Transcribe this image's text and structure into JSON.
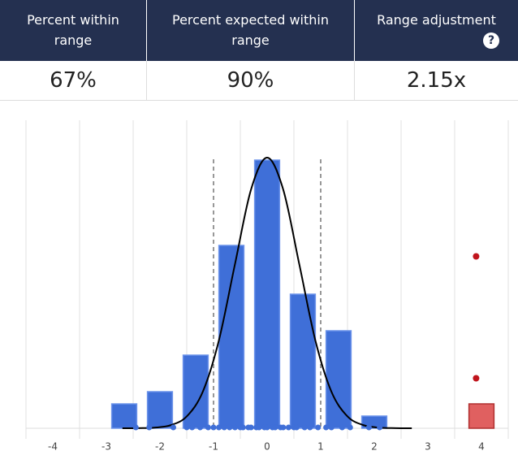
{
  "header": {
    "columns": [
      {
        "label": "Percent within range",
        "value": "67%"
      },
      {
        "label": "Percent expected within range",
        "value": "90%"
      },
      {
        "label": "Range adjustment",
        "value": "2.15x",
        "help": "?"
      }
    ]
  },
  "chart_data": {
    "type": "histogram",
    "bins": [
      -3,
      -2.333,
      -1.667,
      -1,
      -0.333,
      0.333,
      1,
      1.667,
      2.333
    ],
    "values": [
      2,
      3,
      6,
      15,
      22,
      11,
      8,
      1
    ],
    "color": "#3f6fd8",
    "outlier_bins": [
      3.667,
      4.333
    ],
    "outlier_values": [
      2
    ],
    "outlier_color": "#e06060",
    "outlier_points": {
      "x": [
        3.9,
        3.9
      ],
      "y": [
        14.1,
        4.1
      ],
      "color": "#c0141c"
    },
    "rug": [
      -2.45,
      -2.2,
      -1.75,
      -1.5,
      -1.4,
      -1.25,
      -1.1,
      -1.0,
      -0.9,
      -0.8,
      -0.7,
      -0.6,
      -0.5,
      -0.45,
      -0.35,
      -0.3,
      -0.2,
      -0.15,
      -0.05,
      0,
      0.1,
      0.15,
      0.25,
      0.3,
      0.4,
      0.5,
      0.55,
      0.7,
      0.8,
      0.95,
      1.1,
      1.2,
      1.4,
      1.55,
      1.9,
      2.1
    ],
    "curve": {
      "x": [
        -2.7,
        -2.4,
        -2.1,
        -1.8,
        -1.5,
        -1.2,
        -0.9,
        -0.6,
        -0.3,
        0,
        0.3,
        0.6,
        0.9,
        1.2,
        1.5,
        1.8,
        2.1,
        2.4,
        2.7
      ],
      "y": [
        0,
        0.01,
        0.05,
        0.25,
        0.97,
        3.0,
        7.21,
        13.46,
        19.59,
        22.2,
        19.59,
        13.46,
        7.21,
        3.0,
        0.97,
        0.25,
        0.05,
        0.01,
        0
      ]
    },
    "range_lines": [
      -1,
      1
    ],
    "xlim": [
      -4.5,
      4.5
    ],
    "xticks": [
      -4,
      -3,
      -2,
      -1,
      0,
      1,
      2,
      3,
      4
    ],
    "grid_x": [
      -4.5,
      -3.5,
      -2.5,
      -1.5,
      -0.5,
      0.5,
      1.5,
      2.5,
      3.5,
      4.5
    ],
    "ylim": [
      0,
      25
    ]
  }
}
